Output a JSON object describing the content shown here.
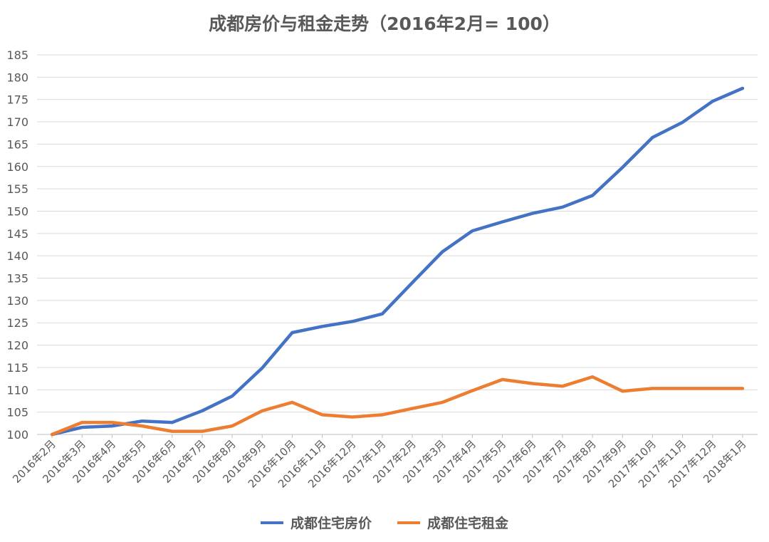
{
  "chart_data": {
    "type": "line",
    "title": "成都房价与租金走势（2016年2月= 100）",
    "categories": [
      "2016年2月",
      "2016年3月",
      "2016年4月",
      "2016年5月",
      "2016年6月",
      "2016年7月",
      "2016年8月",
      "2016年9月",
      "2016年10月",
      "2016年11月",
      "2016年12月",
      "2017年1月",
      "2017年2月",
      "2017年3月",
      "2017年4月",
      "2017年5月",
      "2017年6月",
      "2017年7月",
      "2017年8月",
      "2017年9月",
      "2017年10月",
      "2017年11月",
      "2017年12月",
      "2018年1月"
    ],
    "series": [
      {
        "name": "成都住宅房价",
        "color": "#4472C4",
        "values": [
          100,
          101.6,
          101.9,
          103.0,
          102.7,
          105.3,
          108.6,
          114.9,
          122.8,
          124.2,
          125.3,
          127.0,
          134.0,
          140.9,
          145.6,
          147.6,
          149.5,
          150.9,
          153.5,
          159.8,
          166.5,
          169.9,
          174.6,
          177.5
        ]
      },
      {
        "name": "成都住宅租金",
        "color": "#ED7D31",
        "values": [
          100,
          102.7,
          102.7,
          101.9,
          100.7,
          100.7,
          101.9,
          105.3,
          107.2,
          104.4,
          103.9,
          104.4,
          105.8,
          107.2,
          109.8,
          112.3,
          111.4,
          110.8,
          112.9,
          109.7,
          110.3,
          110.3,
          110.3,
          110.3
        ]
      }
    ],
    "ylim": [
      100,
      185
    ],
    "yticks": [
      100,
      105,
      110,
      115,
      120,
      125,
      130,
      135,
      140,
      145,
      150,
      155,
      160,
      165,
      170,
      175,
      180,
      185
    ],
    "grid": true,
    "legend_position": "bottom"
  }
}
